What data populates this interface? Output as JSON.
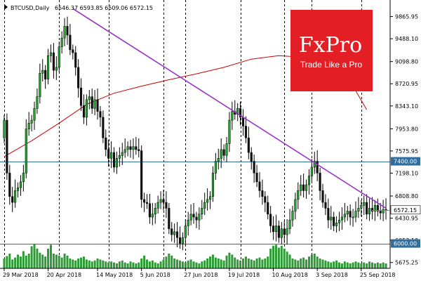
{
  "header": {
    "symbol": "BTCUSD,Daily",
    "ohlc": "6546.37 6593.85 6509.06 6572.15"
  },
  "logo": {
    "brand": "FxPro",
    "tagline": "Trade Like a Pro",
    "color": "#e31e24"
  },
  "colors": {
    "bull": "#1fa82a",
    "bear": "#111111",
    "trendline": "#9933cc",
    "moving_average": "#cc0000",
    "levels": "#2f6e9e",
    "volume": "#2e9a35",
    "price_badge": "#ffffff"
  },
  "chart_data": {
    "type": "candlestick",
    "symbol": "BTCUSD",
    "timeframe": "Daily",
    "last_close": 6572.15,
    "ylim": [
      5600,
      10100
    ],
    "y_ticks": [
      "9865.95",
      "9488.10",
      "9098.80",
      "8720.95",
      "8343.10",
      "7953.80",
      "7575.95",
      "7198.10",
      "6808.80",
      "6430.95",
      "6053.10",
      "5675.25"
    ],
    "x_ticks": [
      {
        "label": "29 Mar 2018",
        "index": 0
      },
      {
        "label": "20 Apr 2018",
        "index": 16
      },
      {
        "label": "14 May 2018",
        "index": 34
      },
      {
        "label": "5 Jun 2018",
        "index": 50
      },
      {
        "label": "27 Jun 2018",
        "index": 66
      },
      {
        "label": "19 Jul 2018",
        "index": 82
      },
      {
        "label": "10 Aug 2018",
        "index": 98
      },
      {
        "label": "3 Sep 2018",
        "index": 114
      },
      {
        "label": "25 Sep 2018",
        "index": 130
      }
    ],
    "vlines_at_index": [
      0,
      20,
      38,
      58,
      66,
      86,
      102,
      112,
      130
    ],
    "levels": [
      {
        "label": "7400.00",
        "value": 7400
      },
      {
        "label": "6000.00",
        "value": 6000
      }
    ],
    "current_price_label": "6572.15",
    "trendline": [
      {
        "index": 25,
        "value": 10000
      },
      {
        "index": 139,
        "value": 6600
      }
    ],
    "moving_average": [
      {
        "i": 0,
        "v": 7480
      },
      {
        "i": 10,
        "v": 7750
      },
      {
        "i": 20,
        "v": 8050
      },
      {
        "i": 30,
        "v": 8370
      },
      {
        "i": 40,
        "v": 8560
      },
      {
        "i": 50,
        "v": 8680
      },
      {
        "i": 60,
        "v": 8790
      },
      {
        "i": 70,
        "v": 8890
      },
      {
        "i": 80,
        "v": 9000
      },
      {
        "i": 90,
        "v": 9140
      },
      {
        "i": 100,
        "v": 9200
      },
      {
        "i": 110,
        "v": 9170
      },
      {
        "i": 120,
        "v": 8960
      },
      {
        "i": 128,
        "v": 8600
      },
      {
        "i": 132,
        "v": 8280
      }
    ],
    "close": [
      8100,
      7200,
      6800,
      6700,
      6900,
      6950,
      7050,
      7200,
      7950,
      8050,
      8100,
      8300,
      8500,
      8900,
      8950,
      8800,
      9200,
      9250,
      8950,
      9000,
      9350,
      9500,
      9700,
      9550,
      9300,
      9250,
      9000,
      8650,
      8350,
      8150,
      8450,
      8500,
      8300,
      8450,
      8250,
      8150,
      7800,
      7600,
      7450,
      7550,
      7300,
      7450,
      7500,
      7550,
      7600,
      7650,
      7600,
      7650,
      7600,
      7580,
      6750,
      6700,
      6680,
      6450,
      6500,
      6600,
      6700,
      6750,
      6700,
      6600,
      6250,
      6150,
      6200,
      6100,
      6000,
      6100,
      6300,
      6400,
      6500,
      6450,
      6400,
      6500,
      6600,
      6700,
      6750,
      6800,
      7200,
      7400,
      7450,
      7600,
      7500,
      7700,
      8100,
      8250,
      8200,
      8300,
      8150,
      8000,
      7800,
      7550,
      7400,
      7200,
      7050,
      6900,
      6800,
      6700,
      6500,
      6300,
      6200,
      6300,
      6100,
      6250,
      6150,
      6250,
      6400,
      6550,
      6750,
      6900,
      7000,
      6900,
      7000,
      7150,
      7300,
      7400,
      7200,
      6900,
      6700,
      6600,
      6400,
      6450,
      6300,
      6350,
      6400,
      6450,
      6500,
      6550,
      6450,
      6450,
      6550,
      6600,
      6650,
      6700,
      6500,
      6600,
      6550,
      6650,
      6550,
      6520,
      6580,
      6572
    ],
    "volume_index": [
      20,
      25,
      30,
      18,
      22,
      28,
      24,
      35,
      26,
      30,
      45,
      50,
      40,
      32,
      28,
      24,
      40,
      48,
      30,
      28,
      26,
      22,
      30,
      26,
      20,
      18,
      16,
      20,
      22,
      24,
      18,
      16,
      14,
      16,
      20,
      18,
      16,
      14,
      12,
      14,
      12,
      10,
      14,
      16,
      12,
      10,
      14,
      12,
      10,
      12,
      20,
      26,
      18,
      14,
      16,
      12,
      10,
      14,
      18,
      24,
      30,
      26,
      20,
      18,
      16,
      14,
      12,
      16,
      18,
      14,
      12,
      10,
      14,
      16,
      20,
      24,
      28,
      22,
      20,
      18,
      16,
      26,
      32,
      28,
      22,
      18,
      16,
      20,
      24,
      20,
      18,
      16,
      20,
      22,
      18,
      20,
      24,
      40,
      46,
      48,
      42,
      46,
      40,
      34,
      28,
      20,
      18,
      16,
      20,
      22,
      18,
      24,
      28,
      30,
      24,
      20,
      18,
      16,
      14,
      12,
      14,
      16,
      12,
      10,
      14,
      12,
      10,
      12,
      14,
      12,
      10,
      12,
      10,
      14,
      12,
      10,
      12,
      10,
      12,
      10
    ]
  }
}
